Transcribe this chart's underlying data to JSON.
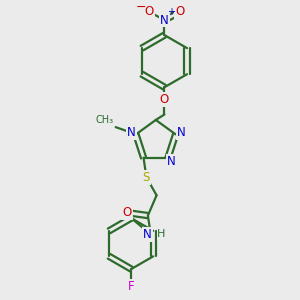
{
  "bg_color": "#ebebeb",
  "bond_color": "#2d6b2d",
  "N_color": "#0000cc",
  "O_color": "#cc0000",
  "S_color": "#aaaa00",
  "F_color": "#cc00cc",
  "line_width": 1.6,
  "figsize": [
    3.0,
    3.0
  ],
  "dpi": 100,
  "xlim": [
    0,
    10
  ],
  "ylim": [
    0,
    10
  ]
}
